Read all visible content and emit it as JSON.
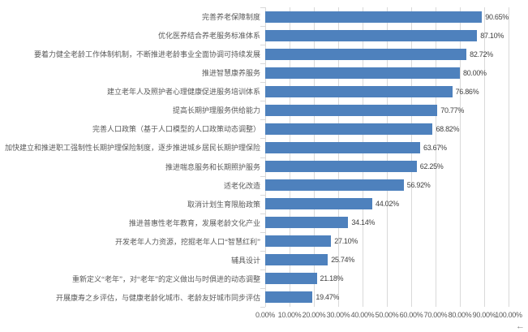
{
  "chart_data": {
    "type": "bar",
    "orientation": "horizontal",
    "title": "",
    "categories": [
      "完善养老保障制度",
      "优化医养结合养老服务标准体系",
      "要着力健全老龄工作体制机制，不断推进老龄事业全面协调可持续发展",
      "推进智慧康养服务",
      "建立老年人及照护者心理健康促进服务培训体系",
      "提高长期护理服务供给能力",
      "完善人口政策（基于人口模型的人口政策动态调整）",
      "加快建立和推进职工强制性长期护理保险制度，逐步推进城乡居民长期护理保险",
      "推进喘息服务和长期照护服务",
      "适老化改造",
      "取消计划生育限胎政策",
      "推进普惠性老年教育，发展老龄文化产业",
      "开发老年人力资源，挖掘老年人口“智慧红利”",
      "辅具设计",
      "重新定义“老年”，对“老年”的定义做出与时俱进的动态调整",
      "开展康寿之乡评估，与健康老龄化城市、老龄友好城市同步评估"
    ],
    "values": [
      90.65,
      87.1,
      82.72,
      80.0,
      76.86,
      70.77,
      68.82,
      63.67,
      62.25,
      56.92,
      44.02,
      34.14,
      27.1,
      25.74,
      21.18,
      19.47
    ],
    "value_labels": [
      "90.65%",
      "87.10%",
      "82.72%",
      "80.00%",
      "76.86%",
      "70.77%",
      "68.82%",
      "63.67%",
      "62.25%",
      "56.92%",
      "44.02%",
      "34.14%",
      "27.10%",
      "25.74%",
      "21.18%",
      "19.47%"
    ],
    "x_ticks": [
      "0.00%",
      "10.00%",
      "20.00%",
      "30.00%",
      "40.00%",
      "50.00%",
      "60.00%",
      "70.00%",
      "80.00%",
      "90.00%",
      "100.00%"
    ],
    "xlim": [
      0,
      100
    ],
    "grid": true,
    "legend": false,
    "colors": {
      "bar": "#4E81BD",
      "gridline": "#D9D9D9",
      "category_text": "#595959",
      "value_text": "#404040",
      "axis_text": "#595959",
      "arrow": "#808080"
    }
  },
  "decorations": {
    "back_arrow": "←"
  }
}
